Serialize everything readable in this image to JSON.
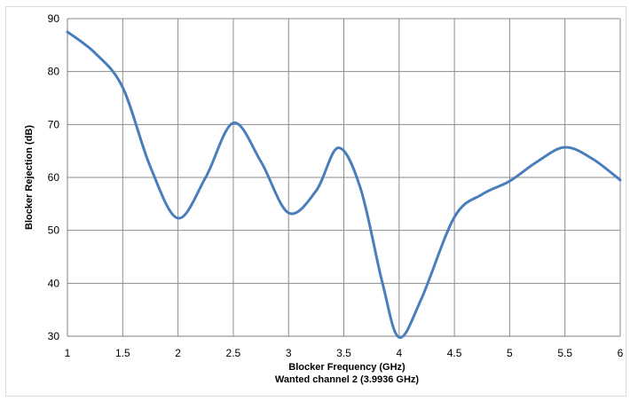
{
  "chart_data": {
    "type": "line",
    "xlabel": "Blocker Frequency (GHz)",
    "xlabel_sub": "Wanted channel 2 (3.9936 GHz)",
    "ylabel": "Blocker Rejection (dB)",
    "xlim": [
      1,
      6
    ],
    "ylim": [
      30,
      90
    ],
    "x_ticks": [
      "1",
      "1.5",
      "2",
      "2.5",
      "3",
      "3.5",
      "4",
      "4.5",
      "5",
      "5.5",
      "6"
    ],
    "y_ticks": [
      "30",
      "40",
      "50",
      "60",
      "70",
      "80",
      "90"
    ],
    "grid": true,
    "series": [
      {
        "color": "#4a7ebb",
        "x": [
          1.0,
          1.25,
          1.5,
          1.75,
          2.0,
          2.25,
          2.5,
          2.75,
          3.0,
          3.25,
          3.45,
          3.65,
          3.85,
          4.0,
          4.2,
          4.5,
          4.75,
          5.0,
          5.25,
          5.5,
          5.75,
          6.0
        ],
        "values": [
          87.5,
          83.5,
          77.0,
          62.0,
          52.3,
          60.0,
          70.3,
          63.0,
          53.3,
          57.5,
          65.6,
          58.0,
          40.0,
          29.8,
          37.0,
          52.5,
          56.8,
          59.3,
          63.0,
          65.7,
          63.5,
          59.5
        ]
      }
    ]
  }
}
